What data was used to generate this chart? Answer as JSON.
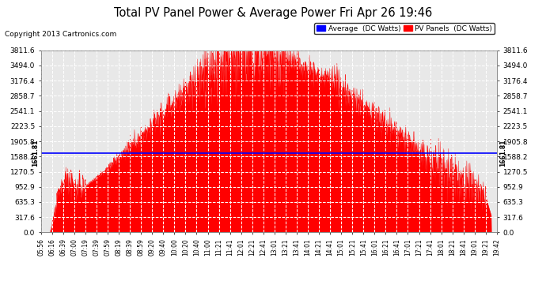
{
  "title": "Total PV Panel Power & Average Power Fri Apr 26 19:46",
  "copyright": "Copyright 2013 Cartronics.com",
  "y_max": 3811.6,
  "y_ticks": [
    0.0,
    317.6,
    635.3,
    952.9,
    1270.5,
    1588.2,
    1905.8,
    2223.5,
    2541.1,
    2858.7,
    3176.4,
    3494.0,
    3811.6
  ],
  "avg_line": 1661.81,
  "avg_line_label": "1661.81",
  "fill_color": "#FF0000",
  "avg_line_color": "#0000FF",
  "bg_color": "#E8E8E8",
  "outer_bg": "#FFFFFF",
  "grid_color": "#FFFFFF",
  "legend_avg_color": "#0000FF",
  "legend_pv_color": "#FF0000",
  "x_labels": [
    "05:56",
    "06:16",
    "06:39",
    "07:00",
    "07:19",
    "07:39",
    "07:59",
    "08:19",
    "08:39",
    "08:59",
    "09:20",
    "09:40",
    "10:00",
    "10:20",
    "10:40",
    "11:00",
    "11:21",
    "11:41",
    "12:01",
    "12:21",
    "12:41",
    "13:01",
    "13:21",
    "13:41",
    "14:01",
    "14:21",
    "14:41",
    "15:01",
    "15:21",
    "15:41",
    "16:01",
    "16:21",
    "16:41",
    "17:01",
    "17:21",
    "17:41",
    "18:01",
    "18:21",
    "18:41",
    "19:01",
    "19:21",
    "19:42"
  ]
}
